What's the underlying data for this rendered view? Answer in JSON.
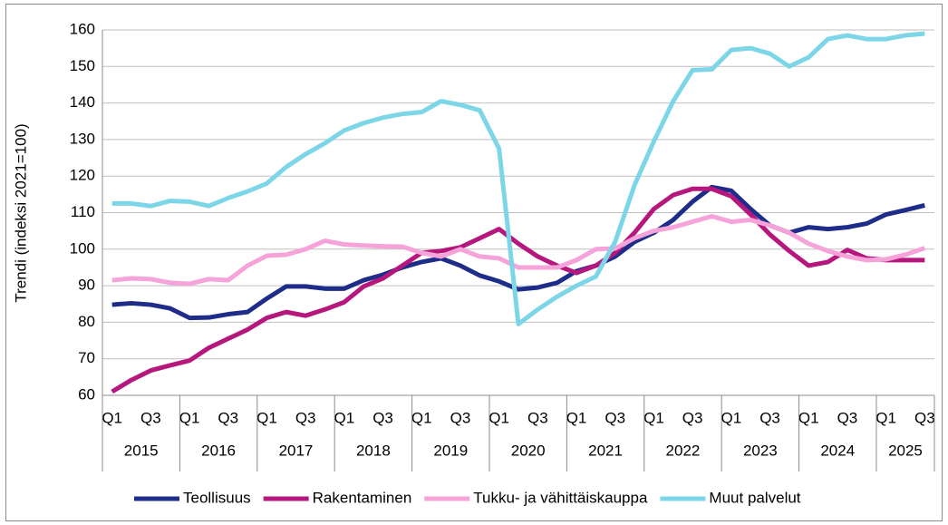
{
  "chart_data": {
    "type": "line",
    "y_label": "Trendi (indeksi 2021=100)",
    "categories": [
      "Q1",
      null,
      "Q3",
      null,
      "Q1",
      null,
      "Q3",
      null,
      "Q1",
      null,
      "Q3",
      null,
      "Q1",
      null,
      "Q3",
      null,
      "Q1",
      null,
      "Q3",
      null,
      "Q1",
      null,
      "Q3",
      null,
      "Q1",
      null,
      "Q3",
      null,
      "Q1",
      null,
      "Q3",
      null,
      "Q1",
      null,
      "Q3",
      null,
      "Q1",
      null,
      "Q3",
      null,
      "Q1",
      null,
      "Q3"
    ],
    "years": [
      "2015",
      "2016",
      "2017",
      "2018",
      "2019",
      "2020",
      "2021",
      "2022",
      "2023",
      "2024",
      "2025"
    ],
    "series": [
      {
        "name": "Teollisuus",
        "color": "#1f2d8a",
        "values": [
          84.8,
          85.2,
          84.8,
          83.8,
          81.2,
          81.3,
          82.2,
          82.8,
          86.5,
          89.8,
          89.8,
          89.2,
          89.2,
          91.5,
          93,
          95,
          96.5,
          97.5,
          95.5,
          92.8,
          91.2,
          89,
          89.5,
          90.8,
          94,
          95.5,
          98,
          102,
          104.5,
          108,
          113,
          117,
          116,
          111,
          106.5,
          104.5,
          106,
          105.5,
          106,
          107,
          109.5,
          110.7,
          112
        ]
      },
      {
        "name": "Rakentaminen",
        "color": "#b5177d",
        "values": [
          61,
          64.2,
          66.8,
          68.2,
          69.5,
          73,
          75.5,
          78,
          81.2,
          82.8,
          81.8,
          83.5,
          85.5,
          89.8,
          92,
          95.5,
          99,
          99.5,
          100.5,
          103,
          105.5,
          101.5,
          98,
          95.5,
          93.5,
          95.5,
          99,
          104.5,
          111,
          114.8,
          116.5,
          116.5,
          114.5,
          109.5,
          104,
          99.5,
          95.5,
          96.5,
          99.8,
          97.5,
          97,
          97,
          97
        ]
      },
      {
        "name": "Tukku- ja vähittäiskauppa",
        "color": "#f5a3d8",
        "values": [
          91.5,
          92,
          91.8,
          90.8,
          90.5,
          91.8,
          91.5,
          95.5,
          98.2,
          98.5,
          100,
          102.3,
          101.3,
          101,
          100.8,
          100.7,
          99,
          98,
          100,
          98,
          97.5,
          95,
          95,
          95,
          97,
          100,
          100.2,
          103,
          105,
          106,
          107.5,
          109,
          107.5,
          108,
          106.5,
          104.5,
          101.5,
          99.5,
          98,
          97,
          97.2,
          98.5,
          100.3
        ]
      },
      {
        "name": "Muut palvelut",
        "color": "#7dd6e8",
        "values": [
          112.5,
          112.5,
          111.8,
          113.2,
          113,
          111.8,
          114,
          115.8,
          118,
          122.5,
          126,
          129,
          132.5,
          134.5,
          136,
          137,
          137.5,
          140.5,
          139.5,
          138,
          127.5,
          79.5,
          83.5,
          87,
          90,
          92.5,
          102,
          117.5,
          129.5,
          140.5,
          149,
          149.2,
          154.5,
          155,
          153.5,
          150,
          152.5,
          157.5,
          158.5,
          157.5,
          157.5,
          158.5,
          159
        ]
      }
    ],
    "ylim": [
      60,
      160
    ],
    "yticks": [
      60,
      70,
      80,
      90,
      100,
      110,
      120,
      130,
      140,
      150,
      160
    ],
    "grid": true,
    "legend": "bottom"
  }
}
